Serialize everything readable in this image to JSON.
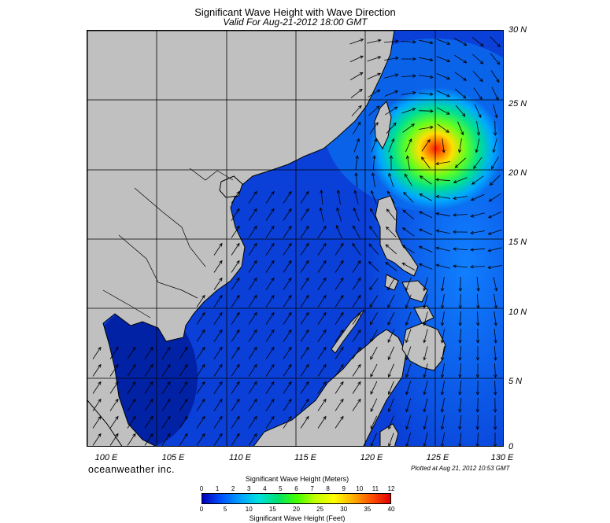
{
  "title": "Significant Wave Height with Wave Direction",
  "subtitle": "Valid For Aug-21-2012 18:00 GMT",
  "lat_labels": [
    "30 N",
    "25 N",
    "20 N",
    "15 N",
    "10 N",
    "5 N",
    "0"
  ],
  "lon_labels": [
    "100 E",
    "105 E",
    "110 E",
    "115 E",
    "120 E",
    "125 E",
    "130 E"
  ],
  "brand": "oceanweather inc.",
  "plotted": "Plotted at Aug 21, 2012 10:53 GMT",
  "colorbar": {
    "meters_title": "Significant Wave Height (Meters)",
    "feet_title": "Significant Wave Height (Feet)",
    "meters_ticks": [
      "0",
      "1",
      "2",
      "3",
      "4",
      "5",
      "6",
      "7",
      "8",
      "9",
      "10",
      "11",
      "12"
    ],
    "feet_ticks": [
      "0",
      "5",
      "10",
      "15",
      "20",
      "25",
      "30",
      "35",
      "40"
    ],
    "colors": [
      "#0000b8",
      "#0050ff",
      "#00a0ff",
      "#00e0e0",
      "#00e070",
      "#40ff00",
      "#c0ff00",
      "#ffff00",
      "#ffb000",
      "#ff5000",
      "#e00000"
    ]
  },
  "colors": {
    "land": "#c0c0c0",
    "sea_low": "#0a2fcf",
    "sea_mid": "#0a60e8",
    "coast": "#000000",
    "storm": "#ff2a00"
  },
  "map_extent": {
    "lon": [
      100,
      130
    ],
    "lat": [
      0,
      30
    ]
  },
  "storm_center": {
    "lon": 125,
    "lat": 22
  }
}
